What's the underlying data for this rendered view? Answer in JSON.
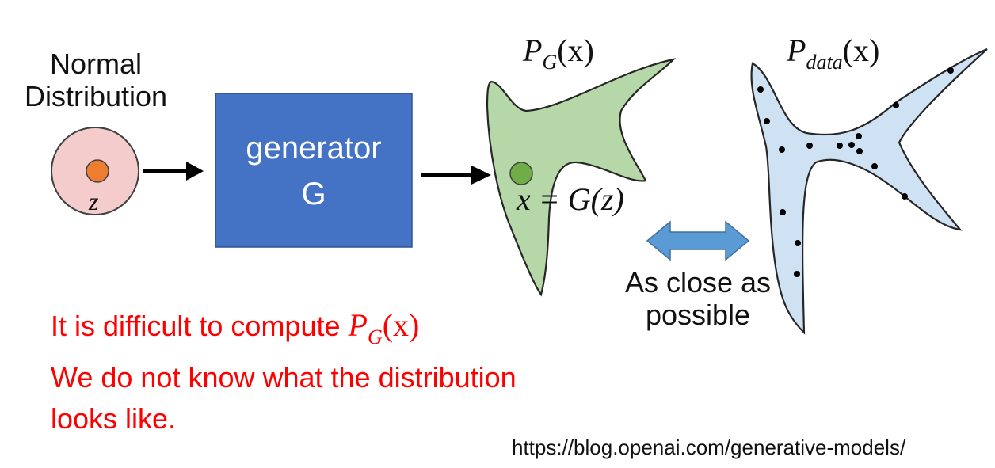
{
  "normal_distribution": {
    "line1": "Normal",
    "line2": "Distribution",
    "var_label": "z"
  },
  "generator": {
    "line1": "generator",
    "line2": "G"
  },
  "pg": {
    "symbol": "P",
    "subscript": "G",
    "argument": "(x)"
  },
  "pdata": {
    "symbol": "P",
    "subscript": "data",
    "argument": "(x)"
  },
  "sample_eq": "x = G(z)",
  "close_text": {
    "line1": "As close as",
    "line2": "possible"
  },
  "notes": {
    "line1_text": "It is difficult to compute ",
    "line1_math_symbol": "P",
    "line1_math_sub": "G",
    "line1_math_arg": "(x)",
    "line2": "We do not know what the distribution",
    "line3": "looks like."
  },
  "url": "https://blog.openai.com/generative-models/",
  "colors": {
    "normal_fill": "#f4cccc",
    "z_dot": "#ed7d31",
    "generator_fill": "#4472c4",
    "pg_fill": "#b6d7a8",
    "x_dot": "#70ad47",
    "pdata_fill": "#cfe2f3",
    "double_arrow": "#5b9bd5",
    "note_text": "#ff0000"
  }
}
